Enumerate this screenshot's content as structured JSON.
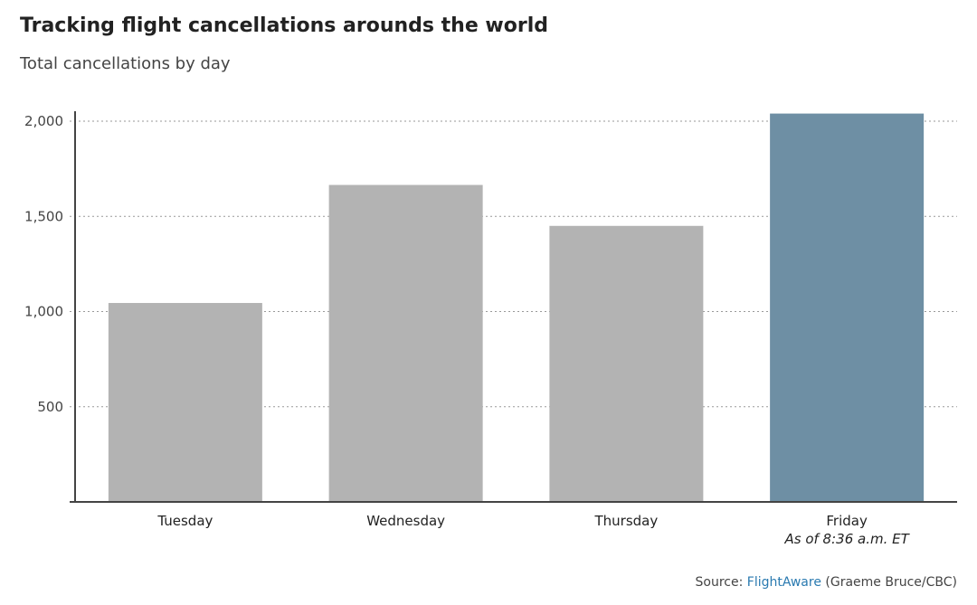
{
  "title": "Tracking flight cancellations arounds the world",
  "subtitle": "Total cancellations by day",
  "source": {
    "prefix": "Source: ",
    "link": "FlightAware",
    "suffix": " (Graeme Bruce/CBC)"
  },
  "chart_data": {
    "type": "bar",
    "title": "Tracking flight cancellations arounds the world",
    "subtitle": "Total cancellations by day",
    "categories": [
      "Tuesday",
      "Wednesday",
      "Thursday",
      "Friday"
    ],
    "values": [
      1045,
      1665,
      1450,
      2040
    ],
    "notes": [
      "",
      "",
      "",
      "As of 8:36 a.m. ET"
    ],
    "colors": [
      "#b3b3b3",
      "#b3b3b3",
      "#b3b3b3",
      "#6e8fa4"
    ],
    "yticks": [
      500,
      1000,
      1500,
      2000
    ],
    "ytick_labels": [
      "500",
      "1,000",
      "1,500",
      "2,000"
    ],
    "ylim": [
      0,
      2000
    ],
    "grid": true
  }
}
